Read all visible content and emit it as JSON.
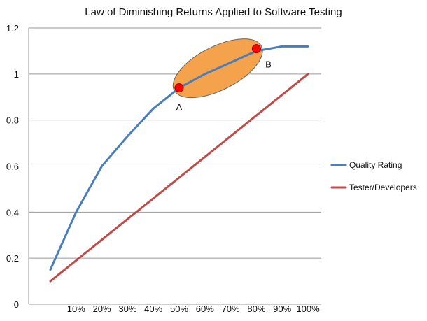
{
  "chart_data": {
    "type": "line",
    "title": "Law of Diminishing Returns Applied to Software Testing",
    "xlabel": "",
    "ylabel": "",
    "categories": [
      "",
      "10%",
      "20%",
      "30%",
      "40%",
      "50%",
      "60%",
      "70%",
      "80%",
      "90%",
      "100%"
    ],
    "ylim": [
      0,
      1.2
    ],
    "yticks": [
      "0",
      "0.2",
      "0.4",
      "0.6",
      "0.8",
      "1",
      "1.2"
    ],
    "grid": "horizontal",
    "legend_position": "right",
    "series": [
      {
        "name": "Quality Rating",
        "color": "#4a7ebb",
        "values": [
          0.15,
          0.4,
          0.6,
          0.73,
          0.85,
          0.94,
          1.0,
          1.05,
          1.1,
          1.12,
          1.12
        ]
      },
      {
        "name": "Tester/Developers",
        "color": "#be4b48",
        "values": [
          0.1,
          0.19,
          0.28,
          0.37,
          0.46,
          0.55,
          0.64,
          0.73,
          0.82,
          0.91,
          1.0
        ]
      }
    ],
    "annotations": [
      {
        "label": "A",
        "point_color": "#ff0000",
        "x_index": 5,
        "y": 0.94
      },
      {
        "label": "B",
        "point_color": "#ff0000",
        "x_index": 8,
        "y": 1.11
      }
    ],
    "highlight": {
      "shape": "ellipse",
      "color": "#f5a24d",
      "from_annotation": "A",
      "to_annotation": "B"
    }
  }
}
